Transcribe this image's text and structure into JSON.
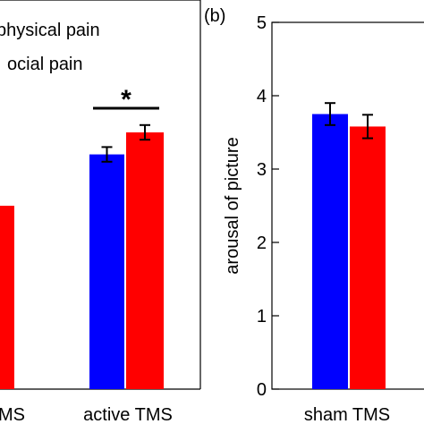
{
  "panel_label": "(b)",
  "chart_data": [
    {
      "type": "bar",
      "categories": [
        "sham TMS",
        "active TMS"
      ],
      "series": [
        {
          "name": "physical pain",
          "color": "#0000ff",
          "values": [
            null,
            3.2
          ],
          "errors": [
            null,
            0.1
          ]
        },
        {
          "name": "social pain",
          "color": "#ff0000",
          "values": [
            2.5,
            3.5
          ],
          "errors": [
            0.08,
            0.1
          ]
        }
      ],
      "ylim": [
        0,
        5
      ],
      "category_label_visible": [
        "MS",
        "active TMS"
      ],
      "legend_visible": [
        "physical pain",
        "ocial pain"
      ],
      "annotations": [
        {
          "text": "*",
          "between_categories": "active TMS"
        }
      ],
      "legend_placement": "top-left",
      "grid": false
    },
    {
      "type": "bar",
      "categories": [
        "sham TMS"
      ],
      "series": [
        {
          "name": "physical pain",
          "color": "#0000ff",
          "values": [
            3.75
          ],
          "errors": [
            0.15
          ]
        },
        {
          "name": "social pain",
          "color": "#ff0000",
          "values": [
            3.58
          ],
          "errors": [
            0.16
          ]
        }
      ],
      "ylabel": "arousal of picture",
      "ylim": [
        0,
        5
      ],
      "yticks": [
        0,
        1,
        2,
        3,
        4,
        5
      ],
      "grid": false
    }
  ]
}
